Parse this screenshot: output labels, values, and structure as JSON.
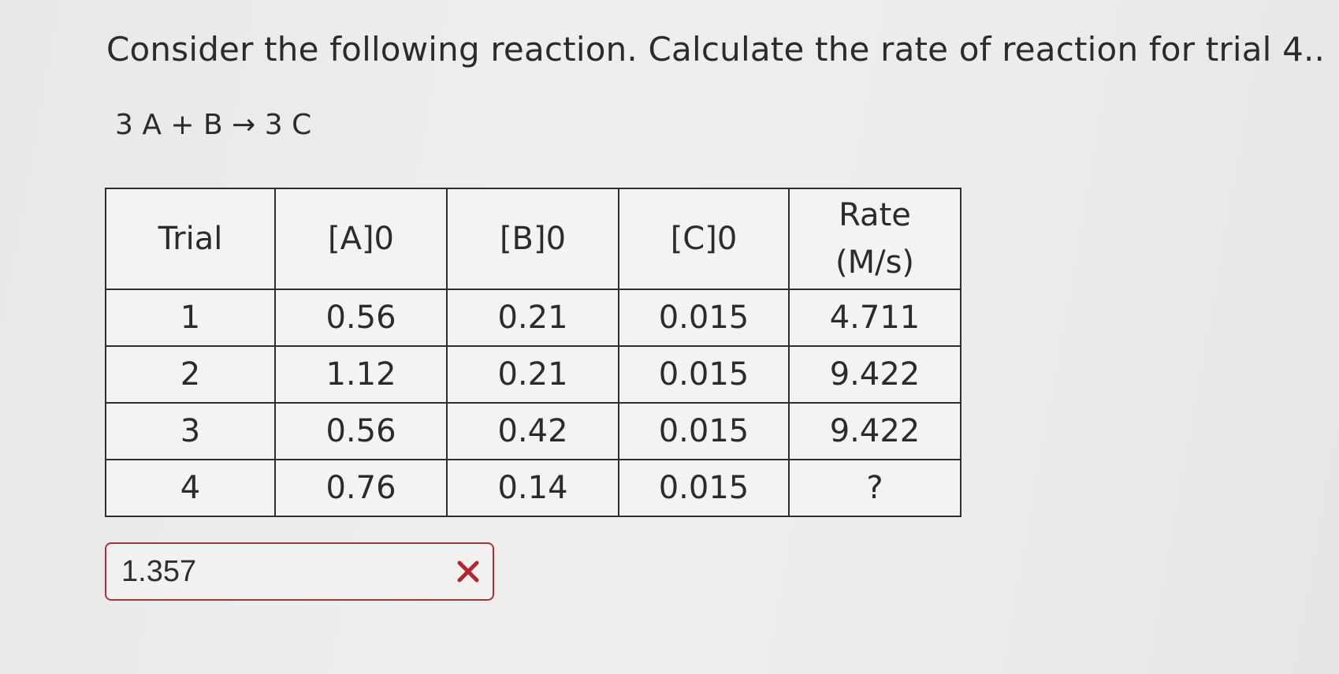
{
  "question": "Consider the following reaction. Calculate the rate of reaction for trial 4..",
  "equation": "3 A + B → 3 C",
  "table": {
    "headers": {
      "trial": "Trial",
      "a": "[A]0",
      "b": "[B]0",
      "c": "[C]0",
      "rate_line1": "Rate",
      "rate_line2": "(M/s)"
    },
    "rows": [
      {
        "trial": "1",
        "a": "0.56",
        "b": "0.21",
        "c": "0.015",
        "rate": "4.711"
      },
      {
        "trial": "2",
        "a": "1.12",
        "b": "0.21",
        "c": "0.015",
        "rate": "9.422"
      },
      {
        "trial": "3",
        "a": "0.56",
        "b": "0.42",
        "c": "0.015",
        "rate": "9.422"
      },
      {
        "trial": "4",
        "a": "0.76",
        "b": "0.14",
        "c": "0.015",
        "rate": "?"
      }
    ]
  },
  "answer": {
    "value": "1.357",
    "status_icon": "incorrect-x-icon",
    "error_color": "#b3262e"
  }
}
